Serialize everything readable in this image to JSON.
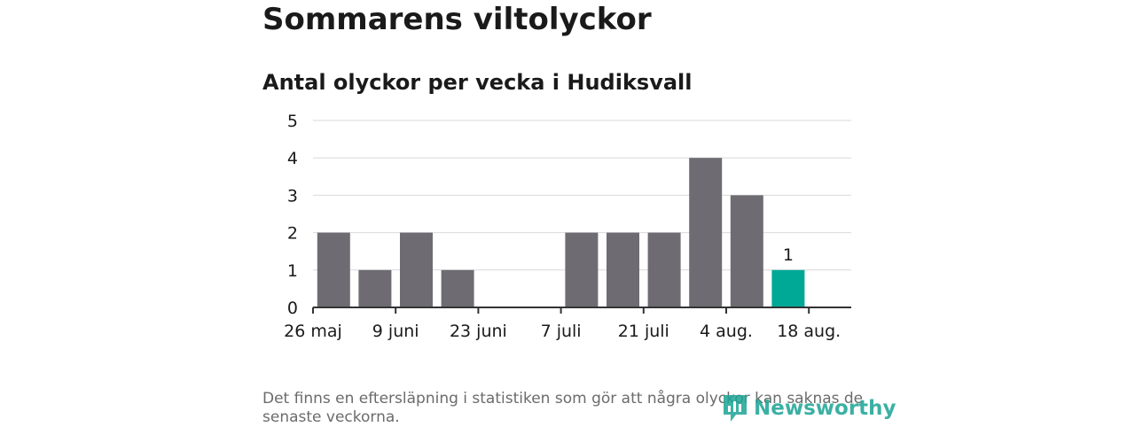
{
  "page": {
    "title": "Sommarens viltolyckor",
    "subtitle": "Antal olyckor per vecka i Hudiksvall",
    "footnote": "Det finns en eftersläpning i statistiken som gör att några olyckor kan saknas de senaste veckorna.",
    "brand": "Newsworthy"
  },
  "colors": {
    "bar": "#6e6c72",
    "highlight": "#00a896",
    "grid": "#d9d9d9",
    "axis": "#333333",
    "brand": "#1aa394"
  },
  "chart_data": {
    "type": "bar",
    "title": "Sommarens viltolyckor",
    "subtitle": "Antal olyckor per vecka i Hudiksvall",
    "xlabel": "",
    "ylabel": "",
    "ylim": [
      0,
      5
    ],
    "yticks": [
      "0",
      "1",
      "2",
      "3",
      "4",
      "5"
    ],
    "week_slots": 13,
    "xticks": [
      {
        "slot": 0,
        "label": "26 maj"
      },
      {
        "slot": 2,
        "label": "9 juni"
      },
      {
        "slot": 4,
        "label": "23 juni"
      },
      {
        "slot": 6,
        "label": "7 juli"
      },
      {
        "slot": 8,
        "label": "21 juli"
      },
      {
        "slot": 10,
        "label": "4 aug."
      },
      {
        "slot": 12,
        "label": "18 aug."
      }
    ],
    "bars": [
      {
        "slot": 0.5,
        "value": 2
      },
      {
        "slot": 1.5,
        "value": 1
      },
      {
        "slot": 2.5,
        "value": 2
      },
      {
        "slot": 3.5,
        "value": 1
      },
      {
        "slot": 4.5,
        "value": 0
      },
      {
        "slot": 5.5,
        "value": 0
      },
      {
        "slot": 6.5,
        "value": 2
      },
      {
        "slot": 7.5,
        "value": 2
      },
      {
        "slot": 8.5,
        "value": 2
      },
      {
        "slot": 9.5,
        "value": 4
      },
      {
        "slot": 10.5,
        "value": 3
      },
      {
        "slot": 11.5,
        "value": 1,
        "highlight": true,
        "label": "1"
      }
    ],
    "grid": true,
    "legend": "none"
  }
}
